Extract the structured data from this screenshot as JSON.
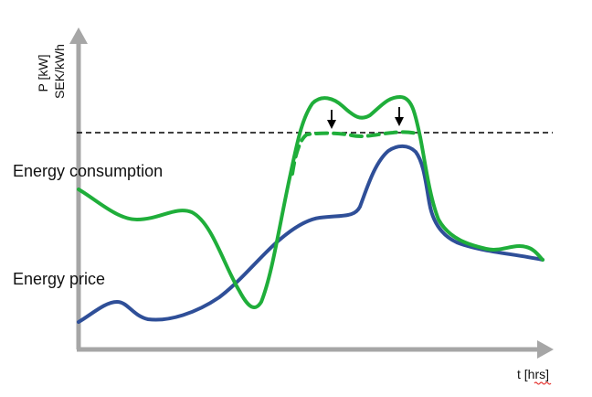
{
  "axes": {
    "y_label_line1": "P [kW]",
    "y_label_line2": "SEK/kWh",
    "x_label_prefix": "t [",
    "x_label_unit": "hrs",
    "x_label_suffix": "]"
  },
  "labels": {
    "energy_consumption": "Energy consumption",
    "energy_price": "Energy price"
  },
  "colors": {
    "consumption": "#1fae3a",
    "price": "#2f4f98",
    "axis": "#a6a6a6",
    "threshold": "#000000",
    "spellcheck_underline": "#e53935"
  }
}
